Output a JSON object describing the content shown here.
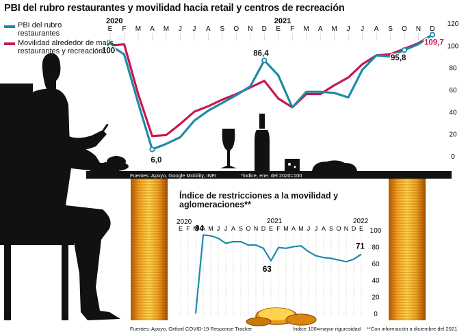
{
  "chart_data": [
    {
      "type": "line",
      "title": "PBI del rubro restaurantes y movilidad hacia retail y centros de recreación",
      "years": [
        "2020",
        "2021"
      ],
      "x": [
        "E",
        "F",
        "M",
        "A",
        "M",
        "J",
        "J",
        "A",
        "S",
        "O",
        "N",
        "D",
        "E",
        "F",
        "M",
        "A",
        "M",
        "J",
        "J",
        "A",
        "S",
        "O",
        "N",
        "D"
      ],
      "yticks": [
        "120",
        "100",
        "80",
        "60",
        "40",
        "20",
        "0"
      ],
      "ylim": [
        0,
        120
      ],
      "series": [
        {
          "name": "PBI del rubro restaurantes",
          "color": "#1e8aa8",
          "values": [
            100,
            92,
            48,
            6.0,
            11,
            17,
            32,
            41,
            48,
            55,
            63,
            86.4,
            73,
            44,
            58,
            58,
            57,
            53,
            78,
            91,
            90,
            95.8,
            101,
            109.7
          ]
        },
        {
          "name": "Movilidad alrededor de malls, restaurantes y recreación*",
          "color": "#c8174f",
          "values": [
            100,
            101,
            56,
            18,
            19,
            29,
            40,
            45,
            51,
            56,
            62,
            68,
            52,
            44,
            56,
            56,
            64,
            71,
            83,
            91,
            92,
            97,
            102,
            109.7
          ]
        }
      ],
      "labels": [
        "100",
        "6,0",
        "86,4",
        "95,8",
        "109,7"
      ],
      "source": "Fuentes: Apoyo, Google Mobility, INEI",
      "note": "*Índice, ene. del 2020=100"
    },
    {
      "type": "line",
      "title": "Índice de restricciones a la movilidad y aglomeraciones**",
      "years": [
        "2020",
        "2021",
        "2022"
      ],
      "x": [
        "E",
        "F",
        "M",
        "A",
        "M",
        "J",
        "J",
        "A",
        "S",
        "O",
        "N",
        "D",
        "E",
        "F",
        "M",
        "A",
        "M",
        "J",
        "J",
        "A",
        "S",
        "O",
        "N",
        "D",
        "E"
      ],
      "yticks": [
        "100",
        "80",
        "60",
        "40",
        "20",
        "0"
      ],
      "ylim": [
        0,
        100
      ],
      "series": [
        {
          "name": "Índice de restricciones",
          "color": "#1e8aa8",
          "values": [
            null,
            null,
            0,
            94,
            93,
            90,
            84,
            86,
            86,
            82,
            82,
            78,
            63,
            79,
            78,
            80,
            81,
            74,
            69,
            67,
            66,
            64,
            62,
            65,
            71
          ]
        }
      ],
      "labels": [
        "94",
        "63",
        "71"
      ],
      "source": "Fuentes: Apoyo, Oxford COVID-19 Response Tracker",
      "note": "Índice 100=mayor rigurosidad",
      "note2": "**Con información a diciembre del 2021"
    }
  ]
}
